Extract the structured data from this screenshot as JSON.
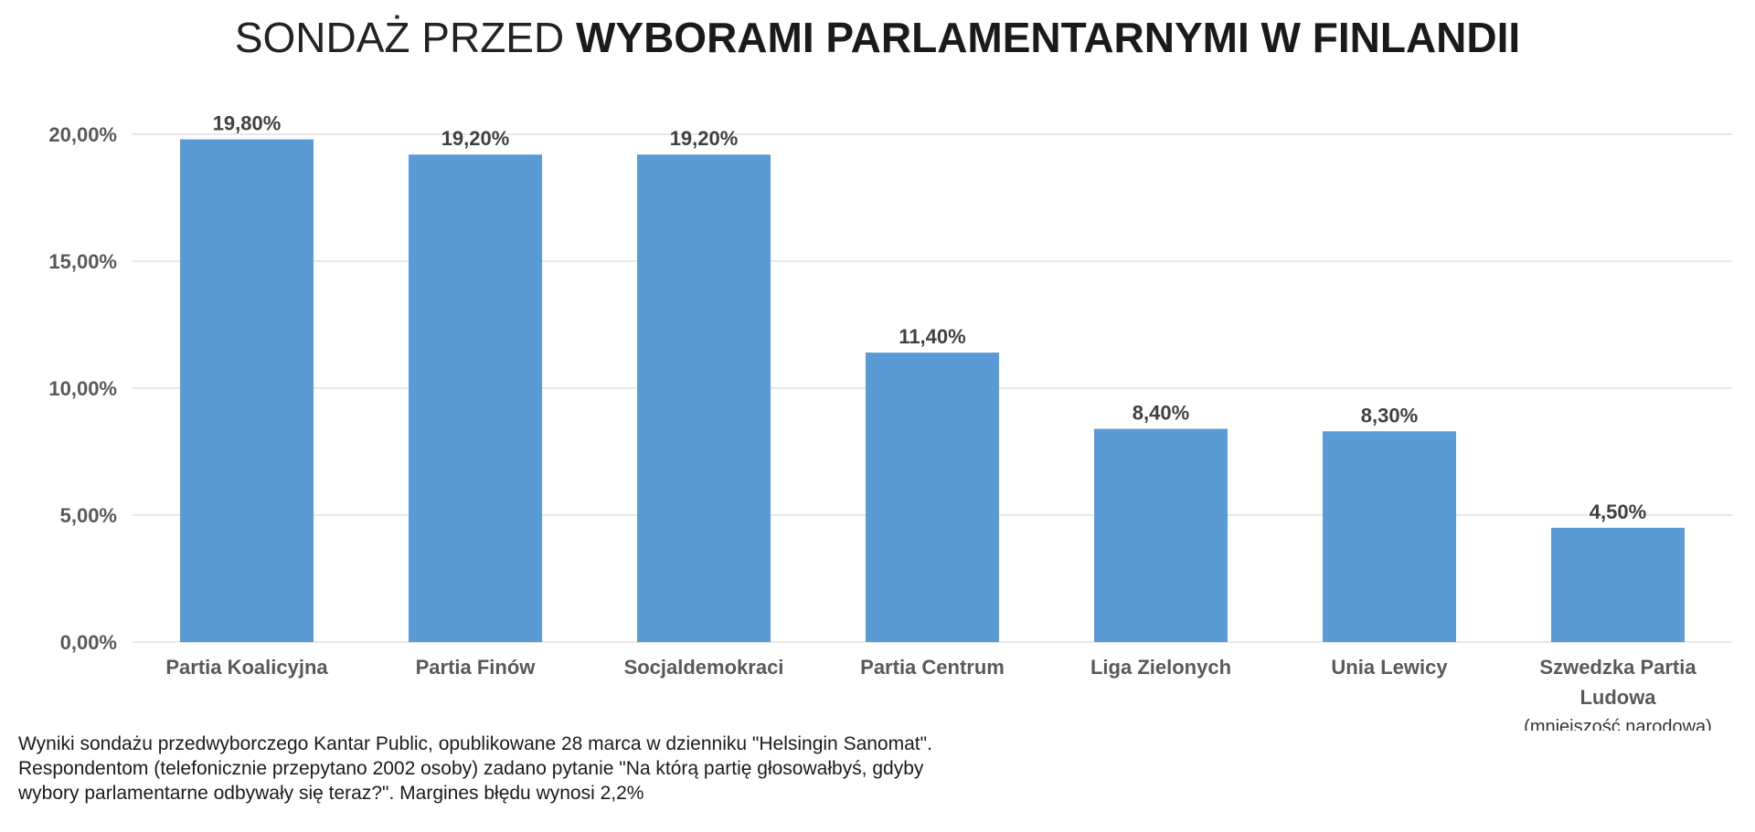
{
  "title": {
    "light": "SONDAŻ PRZED",
    "bold": "WYBORAMI PARLAMENTARNYMI W FINLANDII"
  },
  "colors": {
    "bar": "#5b9bd5",
    "grid": "#d9d9d9",
    "axis_text": "#595959"
  },
  "chart_data": {
    "type": "bar",
    "categories": [
      [
        "Partia Koalicyjna"
      ],
      [
        "Partia Finów"
      ],
      [
        "Socjaldemokraci"
      ],
      [
        "Partia Centrum"
      ],
      [
        "Liga Zielonych"
      ],
      [
        "Unia Lewicy"
      ],
      [
        "Szwedzka Partia",
        "Ludowa"
      ]
    ],
    "category_notes": [
      "",
      "",
      "",
      "",
      "",
      "",
      "(mniejszość narodowa)"
    ],
    "values": [
      19.8,
      19.2,
      19.2,
      11.4,
      8.4,
      8.3,
      4.5
    ],
    "value_labels": [
      "19,80%",
      "19,20%",
      "19,20%",
      "11,40%",
      "8,40%",
      "8,30%",
      "4,50%"
    ],
    "y_ticks": [
      0,
      5,
      10,
      15,
      20
    ],
    "y_tick_labels": [
      "0,00%",
      "5,00%",
      "10,00%",
      "15,00%",
      "20,00%"
    ],
    "ylim": [
      0,
      20
    ],
    "grid": true,
    "legend": "none"
  },
  "footnote": [
    "Wyniki sondażu przedwyborczego Kantar Public, opublikowane 28 marca w dzienniku \"Helsingin Sanomat\".",
    "Respondentom (telefonicznie przepytano 2002 osoby) zadano pytanie \"Na którą partię głosowałbyś, gdyby",
    "wybory parlamentarne odbywały się teraz?\". Margines błędu wynosi 2,2%"
  ]
}
